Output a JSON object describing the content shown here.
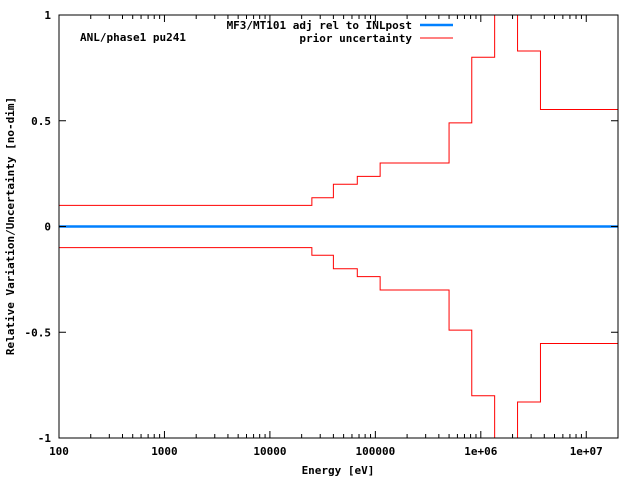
{
  "chart_data": {
    "type": "line",
    "title": "",
    "annotation": "ANL/phase1 pu241",
    "xlabel": "Energy [eV]",
    "ylabel": "Relative Variation/Uncertainty [no-dim]",
    "xscale": "log",
    "xlim": [
      100,
      20000000
    ],
    "ylim": [
      -1,
      1
    ],
    "grid": false,
    "legend_position": "top-right",
    "x_ticks": [
      {
        "value": 100,
        "label": "100"
      },
      {
        "value": 1000,
        "label": "1000"
      },
      {
        "value": 10000,
        "label": "10000"
      },
      {
        "value": 100000,
        "label": "100000"
      },
      {
        "value": 1000000,
        "label": "1e+06"
      },
      {
        "value": 10000000,
        "label": "1e+07"
      }
    ],
    "y_ticks": [
      {
        "value": -1,
        "label": "-1"
      },
      {
        "value": -0.5,
        "label": "-0.5"
      },
      {
        "value": 0,
        "label": "0"
      },
      {
        "value": 0.5,
        "label": "0.5"
      },
      {
        "value": 1,
        "label": "1"
      }
    ],
    "series": [
      {
        "name": "MF3/MT101 adj rel to INLpost",
        "color": "#0080ff",
        "style": "thick-line",
        "x": [
          100,
          20000000
        ],
        "y": [
          0,
          0
        ]
      },
      {
        "name": "prior uncertainty",
        "color": "#ff0000",
        "style": "histogram-steps-plus-minus",
        "bin_edges": [
          100,
          25000,
          40000,
          67400,
          111000,
          500000,
          821000,
          1353000,
          2231000,
          3679000,
          20000000
        ],
        "values": [
          0.1,
          0.136,
          0.2,
          0.237,
          0.3,
          0.49,
          0.8,
          1.2,
          0.83,
          0.553
        ]
      }
    ]
  }
}
